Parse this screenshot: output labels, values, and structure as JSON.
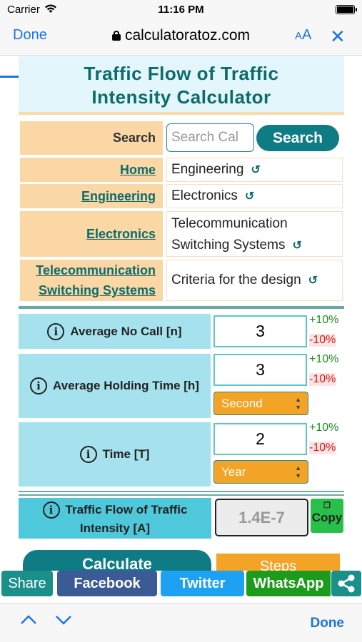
{
  "status": {
    "carrier": "Carrier",
    "time": "11:16 PM"
  },
  "browser": {
    "done": "Done",
    "url": "calculatoratoz.com",
    "aa_small": "A",
    "aa_large": "A",
    "close": "✕",
    "toolbar_done": "Done"
  },
  "title": {
    "line1": "Traffic Flow of Traffic",
    "line2": "Intensity Calculator"
  },
  "search": {
    "label": "Search",
    "placeholder": "Search Cal",
    "button": "Search"
  },
  "breadcrumbs": [
    {
      "left": "Home",
      "right": "Engineering"
    },
    {
      "left": "Engineering",
      "right": "Electronics"
    },
    {
      "left": "Electronics",
      "right_line1": "Telecommunication",
      "right_line2": "Switching Systems"
    },
    {
      "left_line1": "Telecommunication",
      "left_line2": "Switching Systems",
      "right": "Criteria for the design"
    }
  ],
  "reset_icon": "↺",
  "info_icon": "i",
  "inputs": [
    {
      "label": "Average No Call [n]",
      "value": "3",
      "plus": "+10%",
      "minus": "-10%"
    },
    {
      "label": "Average Holding Time [h]",
      "value": "3",
      "unit": "Second",
      "plus": "+10%",
      "minus": "-10%"
    },
    {
      "label": "Time [T]",
      "value": "2",
      "unit": "Year",
      "plus": "+10%",
      "minus": "-10%"
    }
  ],
  "result": {
    "line1": "Traffic Flow of Traffic",
    "line2": "Intensity [A]",
    "value": "1.4E-7",
    "copy": "Copy"
  },
  "actions": {
    "calculate": "Calculate",
    "steps": "Steps"
  },
  "share": {
    "share": "Share",
    "facebook": "Facebook",
    "twitter": "Twitter",
    "whatsapp": "WhatsApp"
  },
  "colors": {
    "accent": "#0f7c85",
    "orange": "#f3a326",
    "ios_blue": "#1a73e8"
  }
}
